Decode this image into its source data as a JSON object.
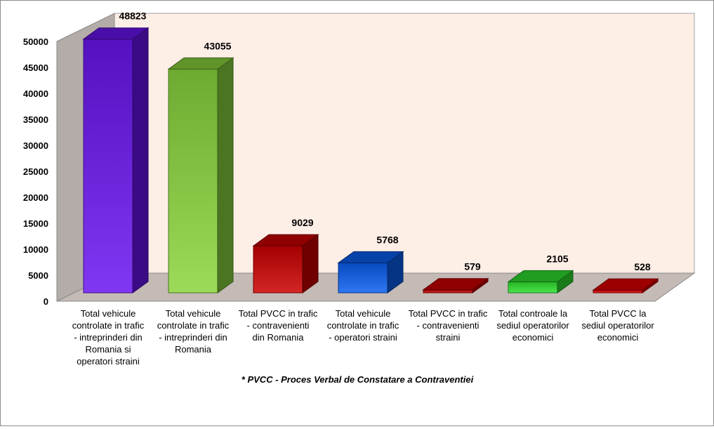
{
  "chart_data": {
    "type": "bar",
    "categories": [
      [
        "Total vehicule",
        "controlate in trafic",
        "- intreprinderi din",
        "Romania si",
        "operatori straini"
      ],
      [
        "Total vehicule",
        "controlate in trafic",
        "- intreprinderi din",
        "Romania"
      ],
      [
        "Total PVCC in trafic",
        "-  contravenienti",
        "din Romania"
      ],
      [
        "Total vehicule",
        "controlate in trafic",
        "- operatori straini"
      ],
      [
        "Total PVCC in trafic",
        "- contravenienti",
        "straini"
      ],
      [
        "Total controale la",
        "sediul operatorilor",
        "economici"
      ],
      [
        "Total PVCC la",
        "sediul operatorilor",
        "economici"
      ]
    ],
    "values": [
      48823,
      43055,
      9029,
      5768,
      579,
      2105,
      528
    ],
    "value_labels": [
      "48823",
      "43055",
      "9029",
      "5768",
      "579",
      "2105",
      "528"
    ],
    "colors": [
      "#6a14f0",
      "#8ad43c",
      "#cc0000",
      "#0a5ef0",
      "#cc0000",
      "#2ee02e",
      "#e00000"
    ],
    "ylim": [
      0,
      50000
    ],
    "y_ticks": [
      0,
      5000,
      10000,
      15000,
      20000,
      25000,
      30000,
      35000,
      40000,
      45000,
      50000
    ],
    "y_tick_labels": [
      "0",
      "5000",
      "10000",
      "15000",
      "20000",
      "25000",
      "30000",
      "35000",
      "40000",
      "45000",
      "50000"
    ],
    "footnote": "* PVCC -  Proces Verbal de Constatare a Contraventiei",
    "legend": "none",
    "grid": false,
    "wall_color": "#fdeee6",
    "side_wall_color": "#b3aca8",
    "floor_color": "#c4bab6"
  }
}
